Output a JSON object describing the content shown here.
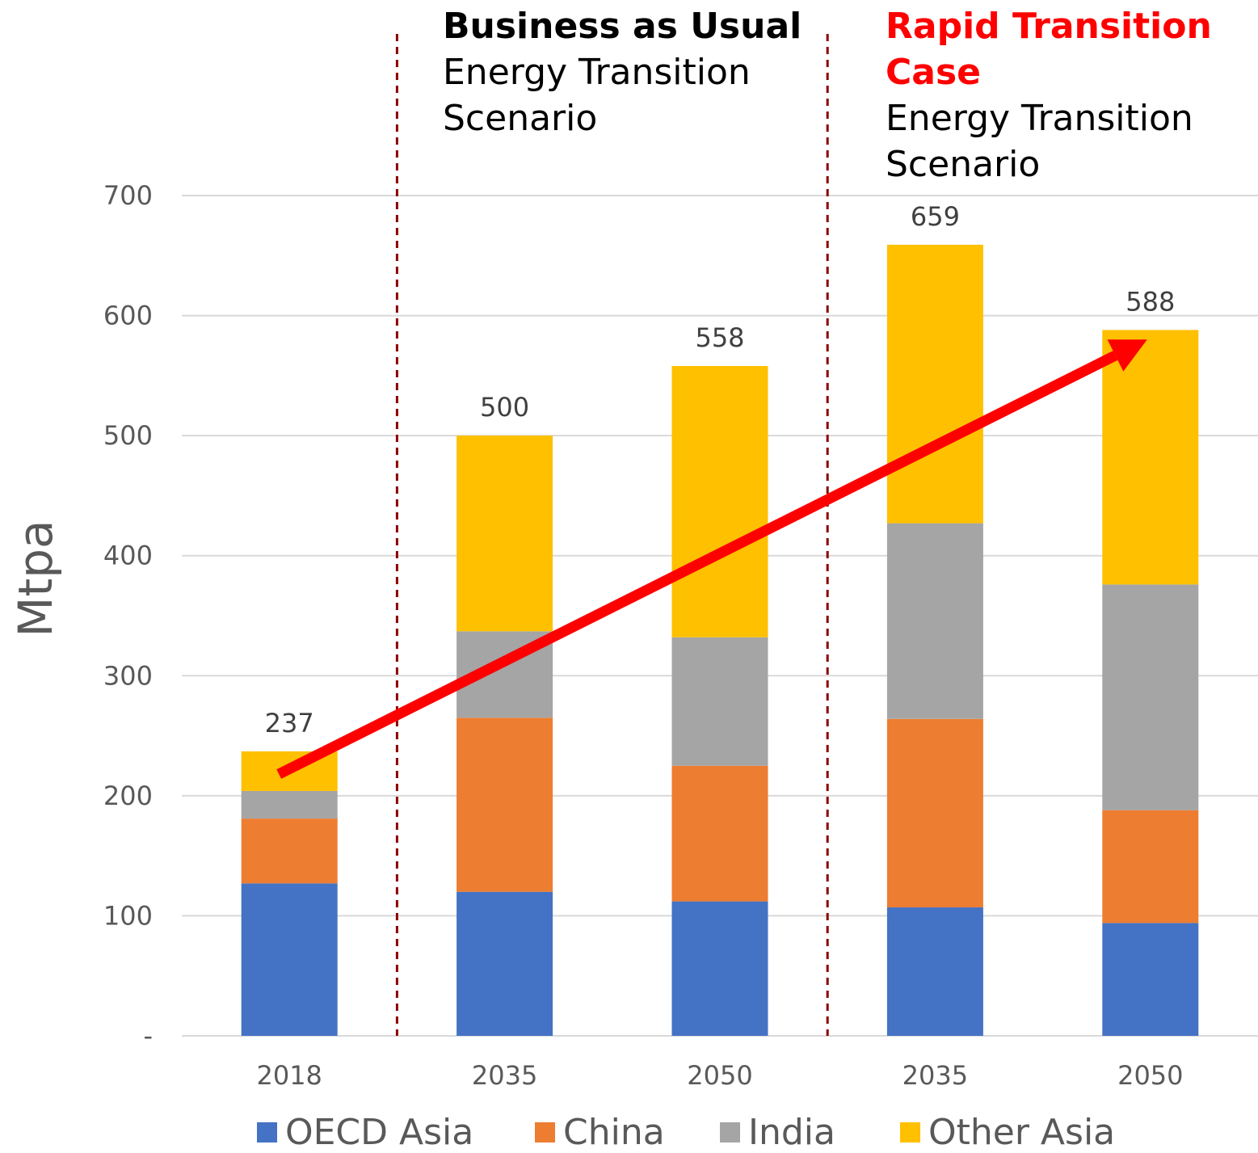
{
  "chart_data": {
    "type": "bar",
    "stacked": true,
    "categories": [
      "2018",
      "2035",
      "2050",
      "2035",
      "2050"
    ],
    "series": [
      {
        "name": "OECD Asia",
        "values": [
          127,
          120,
          112,
          107,
          94
        ]
      },
      {
        "name": "China",
        "values": [
          54,
          145,
          113,
          157,
          94
        ]
      },
      {
        "name": "India",
        "values": [
          23,
          72,
          107,
          163,
          188
        ]
      },
      {
        "name": "Other Asia",
        "values": [
          33,
          163,
          226,
          232,
          212
        ]
      }
    ],
    "totals": [
      237,
      500,
      558,
      659,
      588
    ],
    "colors": [
      "#4472C4",
      "#ED7D31",
      "#A5A5A5",
      "#FFC000"
    ],
    "ylabel": "Mtpa",
    "ylim": [
      0,
      700
    ],
    "yticks": [
      0,
      100,
      200,
      300,
      400,
      500,
      600,
      700
    ],
    "ytick_labels": [
      "-",
      "100",
      "200",
      "300",
      "400",
      "500",
      "600",
      "700"
    ],
    "grid": true,
    "legend_position": "bottom",
    "trend_arrow": {
      "from_category": 0,
      "from_value": 218,
      "to_category": 4,
      "to_value": 580,
      "color": "#FF0000"
    },
    "annotations": [
      {
        "bold": "Business as Usual",
        "bold_color": "#000000",
        "lines": [
          "Energy Transition",
          "Scenario"
        ]
      },
      {
        "bold": "Rapid Transition Case",
        "bold_lines": [
          "Rapid Transition",
          "Case"
        ],
        "bold_color": "#FF0000",
        "lines": [
          "Energy Transition",
          "Scenario"
        ]
      }
    ],
    "divider_color": "#8B0000"
  }
}
